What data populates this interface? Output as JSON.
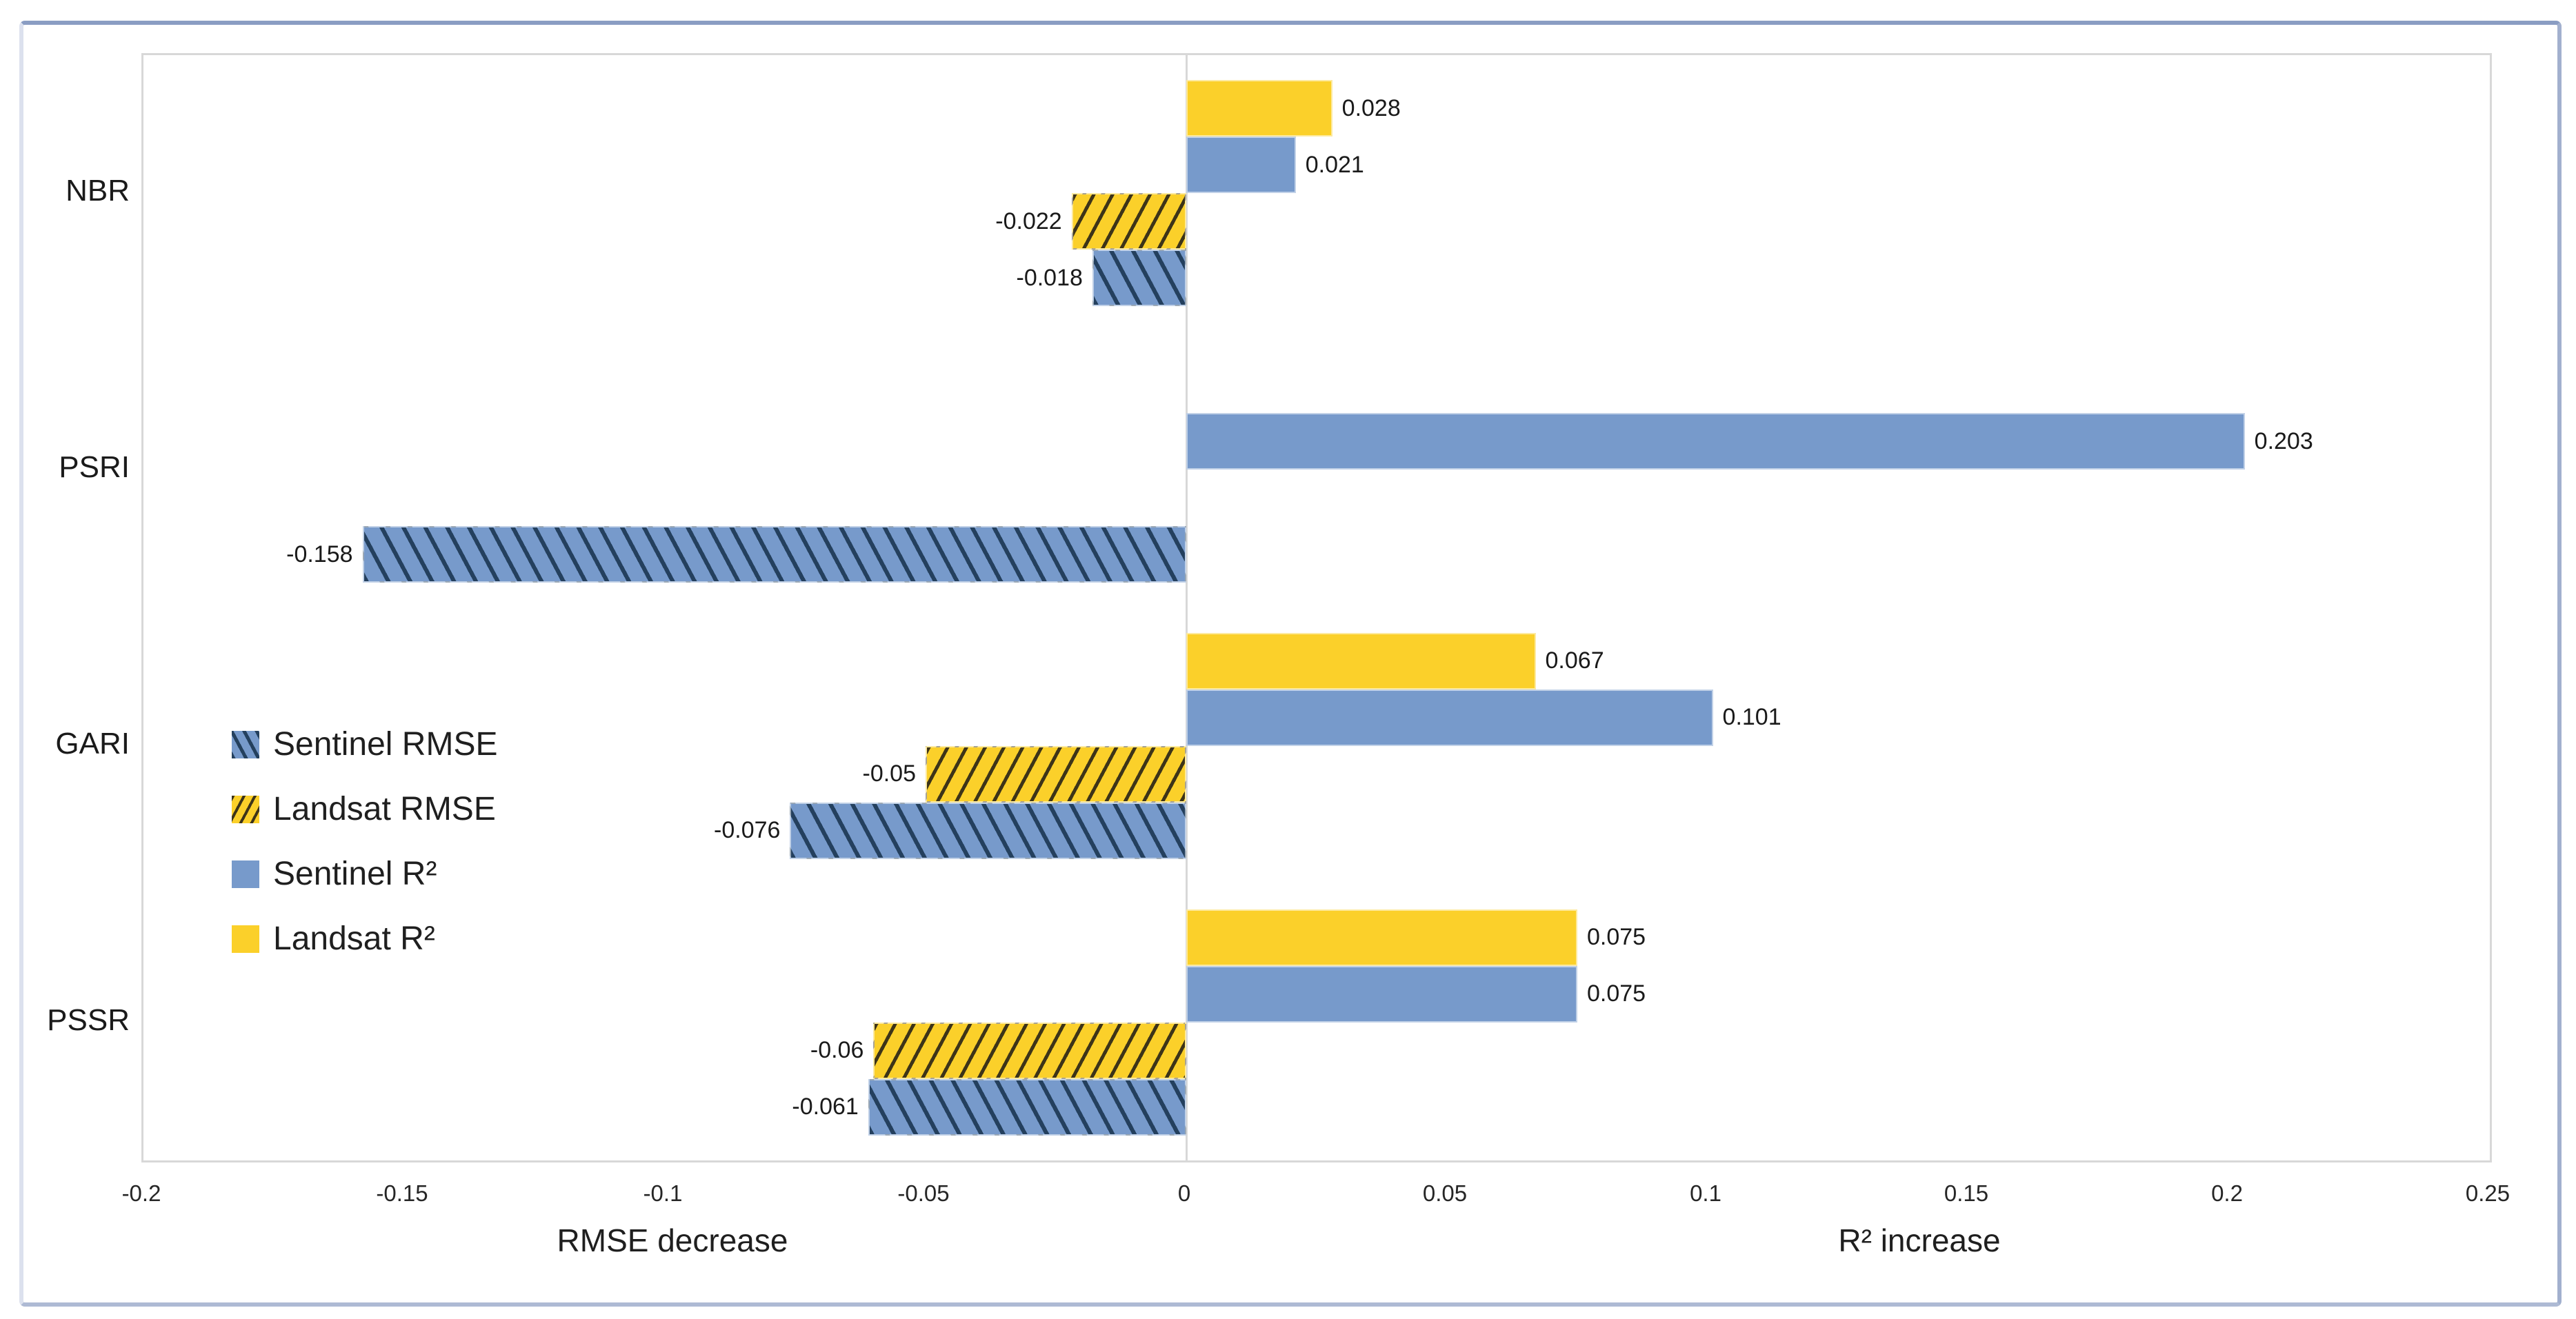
{
  "chart_data": {
    "type": "bar",
    "orientation": "horizontal",
    "title": "",
    "categories": [
      "NBR",
      "PSRI",
      "GARI",
      "PSSR"
    ],
    "series": [
      {
        "name": "Landsat R²",
        "swatch": "yellow-solid",
        "values": [
          0.028,
          null,
          0.067,
          0.075
        ],
        "labels": [
          "0.028",
          "",
          "0.067",
          "0.075"
        ]
      },
      {
        "name": "Sentinel R²",
        "swatch": "blue-solid",
        "values": [
          0.021,
          0.203,
          0.101,
          0.075
        ],
        "labels": [
          "0.021",
          "0.203",
          "0.101",
          "0.075"
        ]
      },
      {
        "name": "Landsat RMSE",
        "swatch": "yellow-hatch",
        "values": [
          -0.022,
          null,
          -0.05,
          -0.06
        ],
        "labels": [
          "-0.022",
          "",
          "-0.05",
          "-0.06"
        ]
      },
      {
        "name": "Sentinel RMSE",
        "swatch": "blue-hatch",
        "values": [
          -0.018,
          -0.158,
          -0.076,
          -0.061
        ],
        "labels": [
          "-0.018",
          "-0.158",
          "-0.076",
          "-0.061"
        ]
      }
    ],
    "legend": {
      "position": "inside-left-middle",
      "items": [
        {
          "label": "Sentinel RMSE",
          "swatch": "blue-hatch"
        },
        {
          "label": "Landsat RMSE",
          "swatch": "yellow-hatch"
        },
        {
          "label": "Sentinel R²",
          "swatch": "blue-solid"
        },
        {
          "label": "Landsat R²",
          "swatch": "yellow-solid"
        }
      ]
    },
    "xlim": [
      -0.2,
      0.25
    ],
    "xticks": [
      -0.2,
      -0.15,
      -0.1,
      -0.05,
      0,
      0.05,
      0.1,
      0.15,
      0.2,
      0.25
    ],
    "xtick_labels": [
      "-0.2",
      "-0.15",
      "-0.1",
      "-0.05",
      "0",
      "0.05",
      "0.1",
      "0.15",
      "0.2",
      "0.25"
    ],
    "xlabel_left": "RMSE decrease",
    "xlabel_right": "R² increase",
    "grid": "off",
    "colors": {
      "sentinel_blue": "#779ACB",
      "landsat_yellow": "#FBD02A",
      "hatch_line_blue": "#24405E",
      "hatch_line_yellow": "#3D3418",
      "plot_border": "#D8D8D8",
      "frame_top": "#8A9DC3",
      "frame_side": "#A2B0CE",
      "frame_bottom": "#AEBAD4",
      "frame_left": "#DCE1EE"
    }
  }
}
